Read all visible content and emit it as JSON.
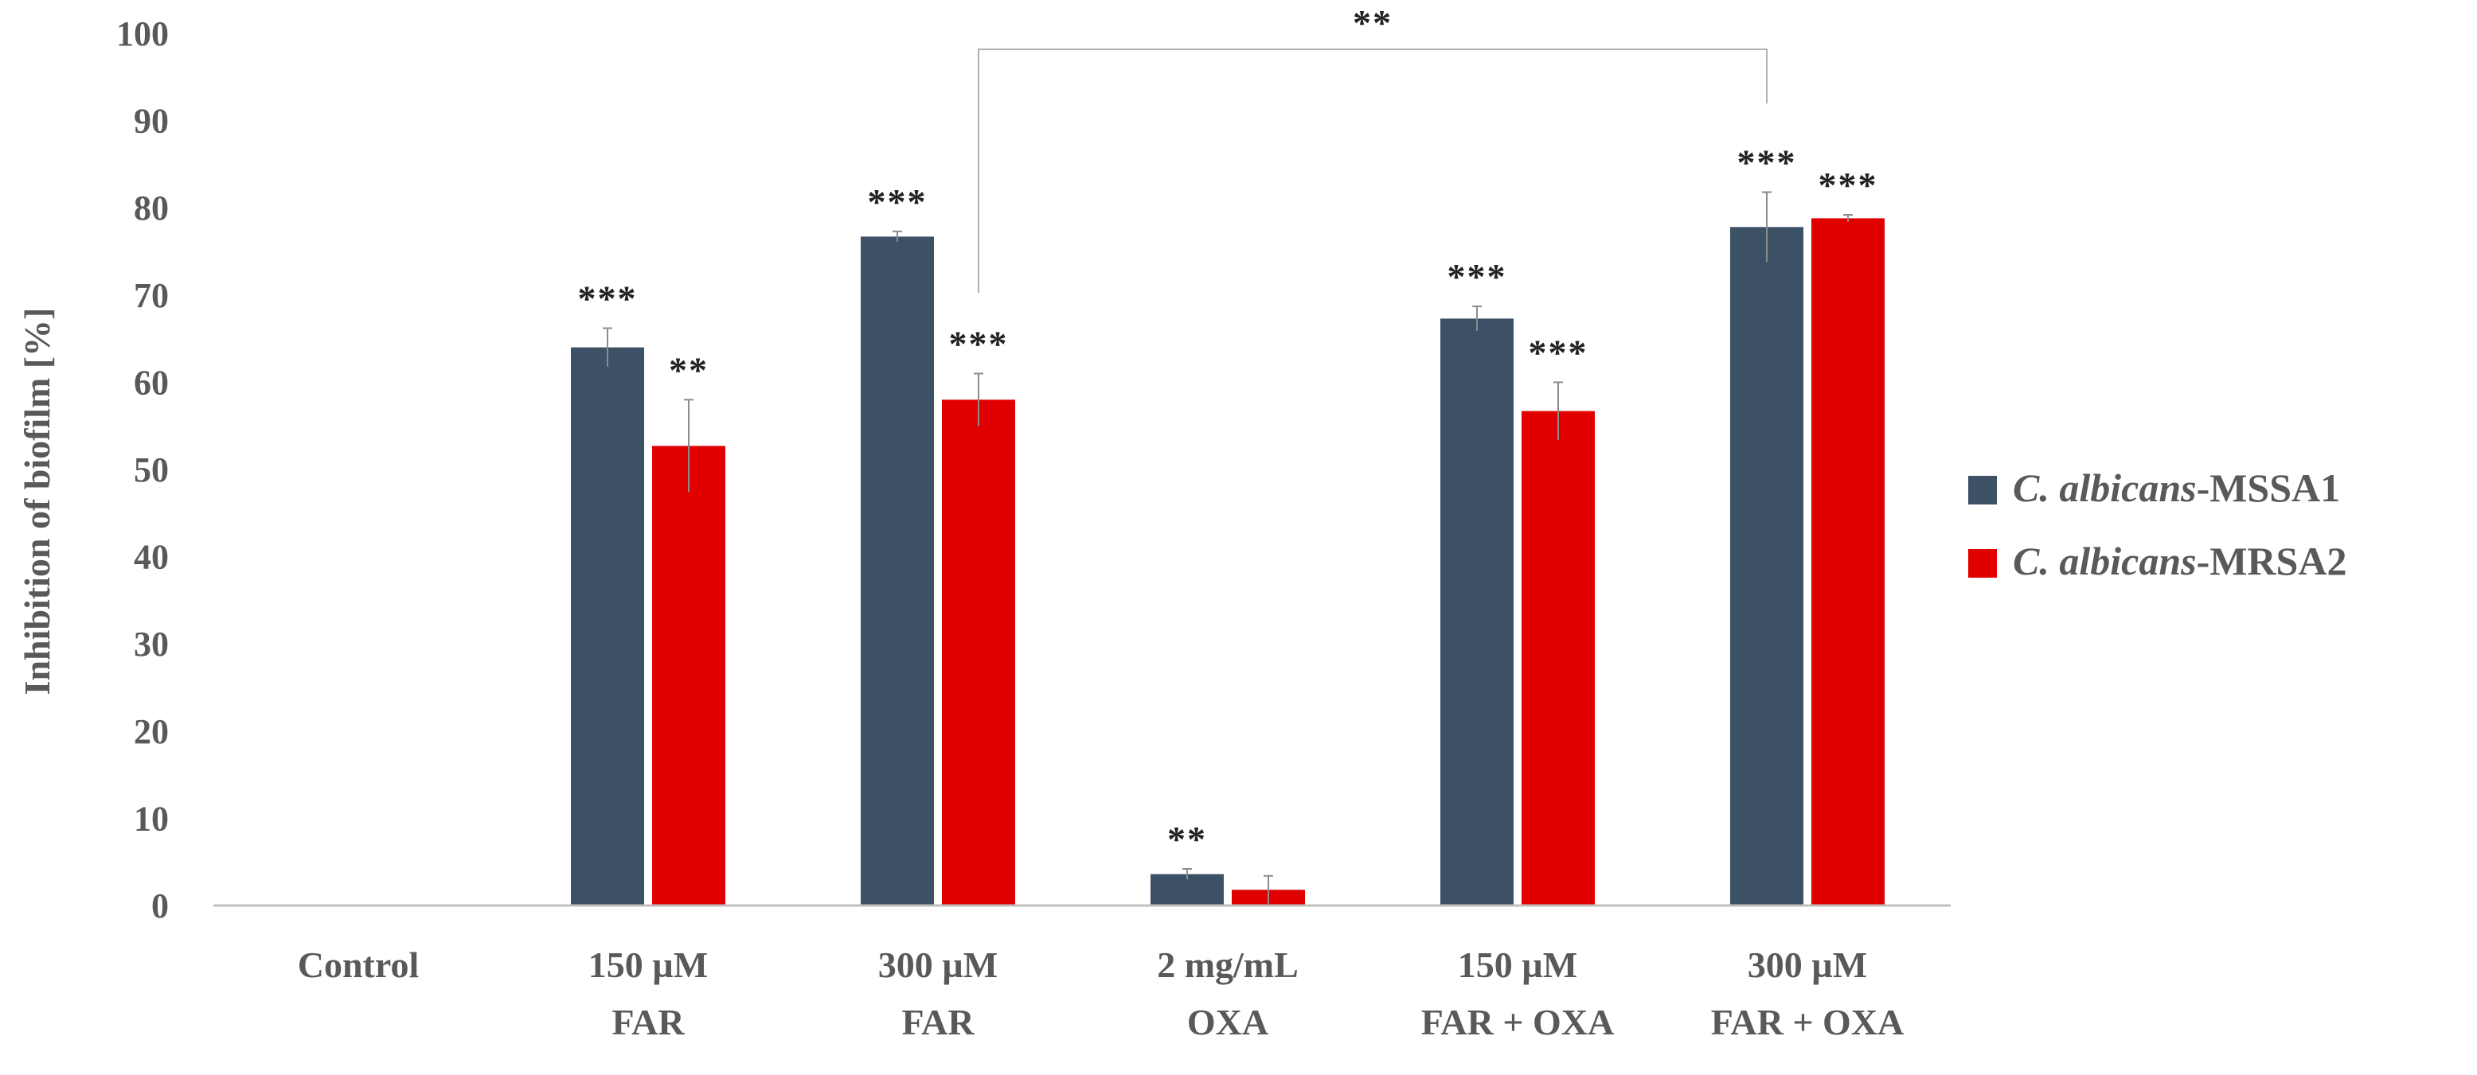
{
  "chart_data": {
    "type": "bar",
    "title": "",
    "xlabel": "",
    "ylabel": "Inhibition of biofilm [%]",
    "ylim": [
      0,
      100
    ],
    "yticks": [
      "0",
      "10",
      "20",
      "30",
      "40",
      "50",
      "60",
      "70",
      "80",
      "90",
      "100"
    ],
    "categories": [
      {
        "line1": "Control",
        "line2": ""
      },
      {
        "line1": "150 µM",
        "line2": "FAR"
      },
      {
        "line1": "300 µM",
        "line2": "FAR"
      },
      {
        "line1": "2 mg/mL",
        "line2": "OXA"
      },
      {
        "line1": "150 µM",
        "line2": "FAR + OXA"
      },
      {
        "line1": "300 µM",
        "line2": "FAR + OXA"
      }
    ],
    "series": [
      {
        "name_italic": "C. albicans",
        "name_rest": "-MSSA1",
        "color": "#3c5066",
        "values": [
          0,
          64,
          76.7,
          3.6,
          67.3,
          77.8
        ],
        "errors": [
          0,
          2.2,
          0.6,
          0.6,
          1.4,
          4
        ],
        "sig": [
          "",
          "***",
          "***",
          "**",
          "***",
          "***"
        ]
      },
      {
        "name_italic": "C. albicans",
        "name_rest": "-MRSA2",
        "color": "#e00000",
        "values": [
          0,
          52.7,
          58,
          1.8,
          56.7,
          78.8
        ],
        "errors": [
          0,
          5.3,
          3,
          1.6,
          3.3,
          0.4
        ],
        "sig": [
          "",
          "**",
          "***",
          "",
          "***",
          "***"
        ]
      }
    ],
    "bracket": {
      "label": "**",
      "from": {
        "category": 2,
        "series": 1
      },
      "to": {
        "category": 5,
        "series": 0
      }
    },
    "legend_position": "right",
    "grid": false
  }
}
